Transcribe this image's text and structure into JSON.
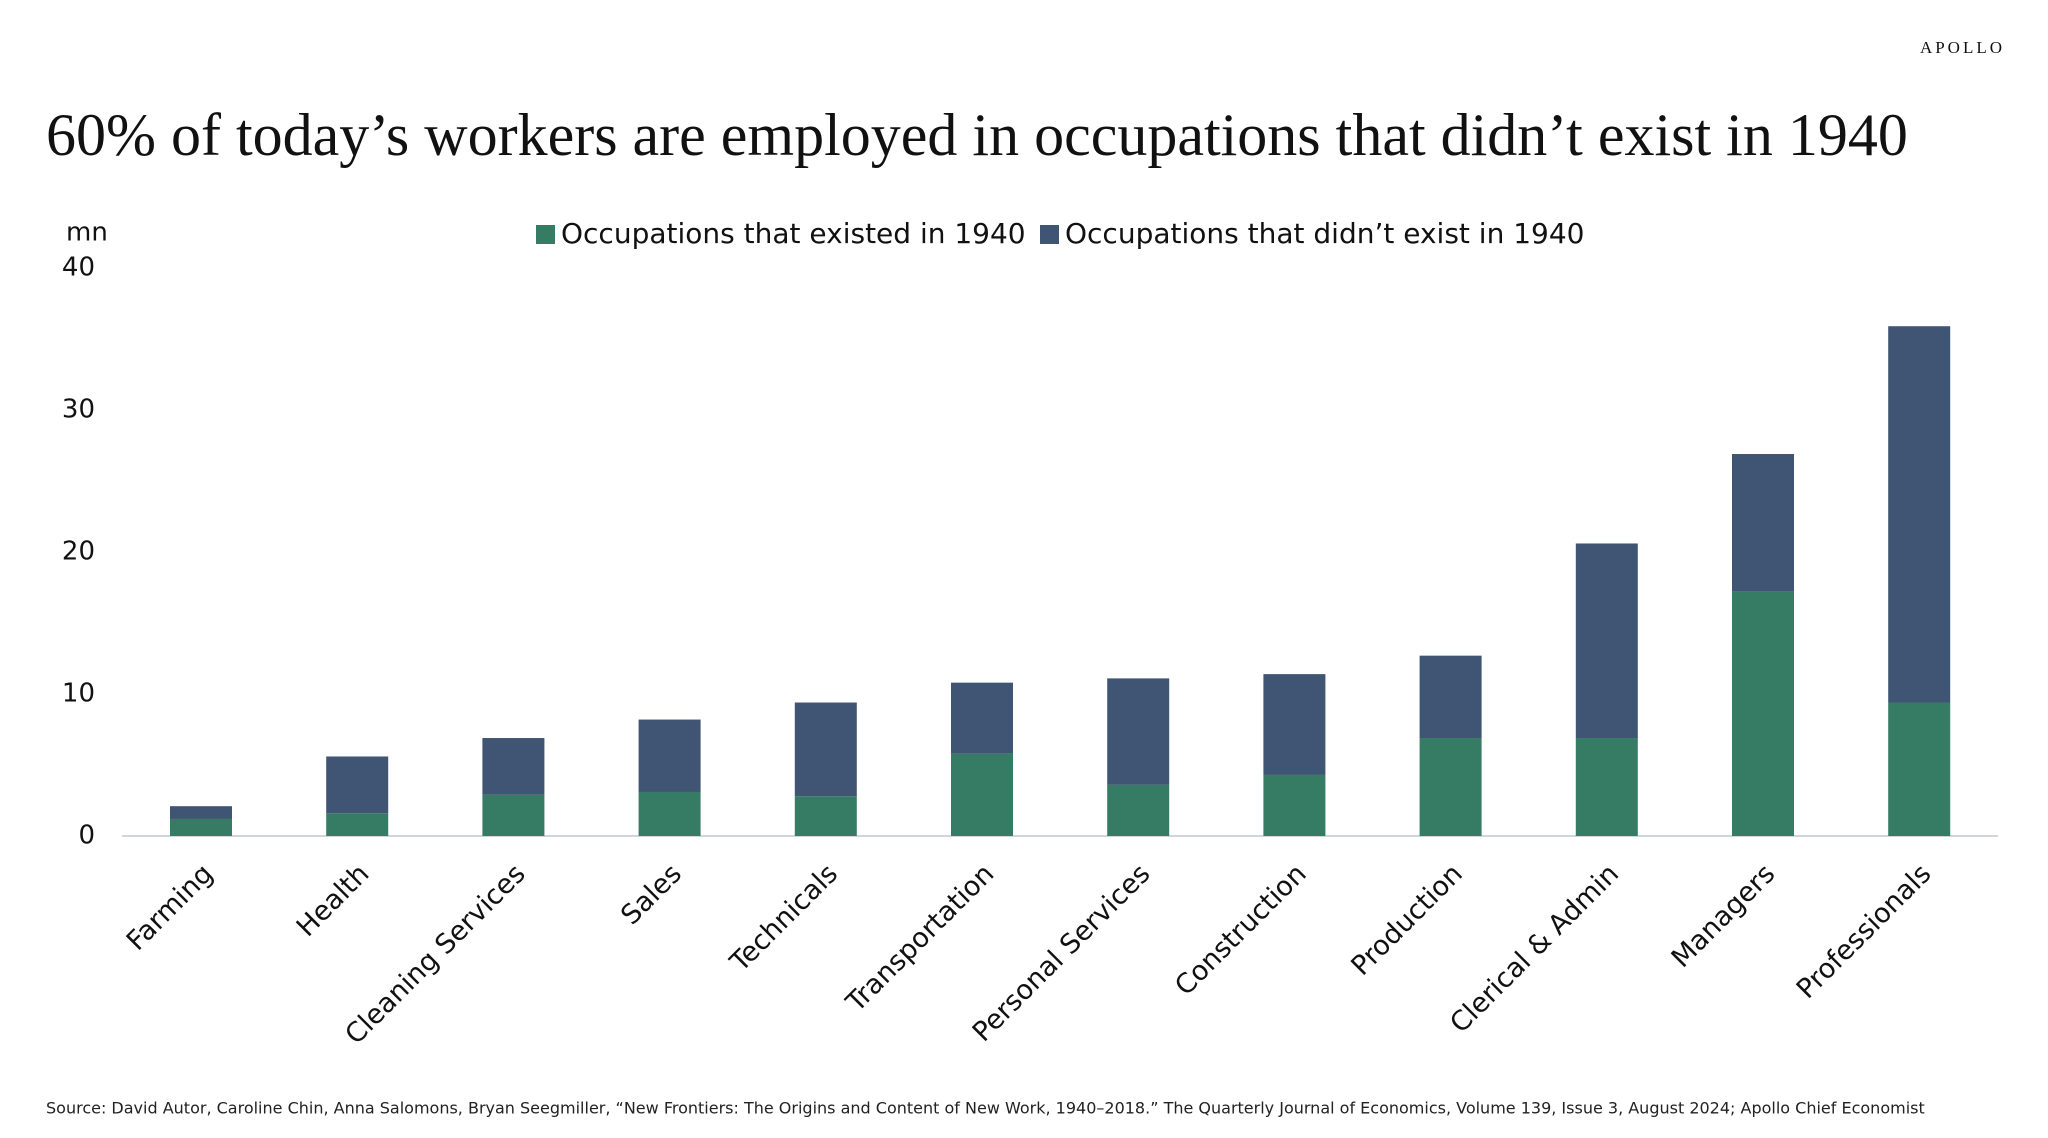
{
  "brand": "APOLLO",
  "source": "Source: David Autor, Caroline Chin, Anna Salomons, Bryan Seegmiller, “New Frontiers: The Origins and Content of New Work, 1940–2018.” The Quarterly Journal of Economics, Volume 139, Issue 3, August 2024; Apollo Chief Economist",
  "chart_data": {
    "type": "stacked_bar",
    "title": "60% of today’s workers are employed in occupations that didn’t exist in 1940",
    "y_label": "mn",
    "categories": [
      "Farming",
      "Health",
      "Cleaning Services",
      "Sales",
      "Technicals",
      "Transportation",
      "Personal Services",
      "Construction",
      "Production",
      "Clerical & Admin",
      "Managers",
      "Professionals"
    ],
    "series": [
      {
        "name": "Occupations that existed in 1940",
        "color": "#367c64",
        "values": [
          1.2,
          1.6,
          2.9,
          3.1,
          2.8,
          5.8,
          3.6,
          4.3,
          6.9,
          6.9,
          17.2,
          9.4
        ]
      },
      {
        "name": "Occupations that didn’t exist in 1940",
        "color": "#405573",
        "values": [
          0.9,
          4.0,
          4.0,
          5.1,
          6.6,
          5.0,
          7.5,
          7.1,
          5.8,
          13.7,
          9.7,
          26.5
        ]
      }
    ],
    "ylim": [
      0,
      40
    ],
    "yticks": [
      0,
      10,
      20,
      30,
      40
    ],
    "grid": false
  }
}
